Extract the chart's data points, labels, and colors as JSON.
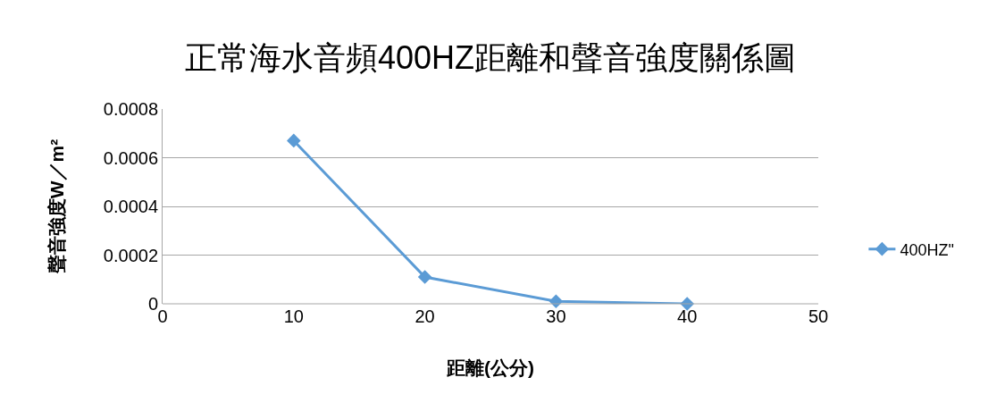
{
  "chart_data": {
    "type": "line",
    "title": "正常海水音頻400HZ距離和聲音強度關係圖",
    "xlabel": "距離(公分)",
    "ylabel": "聲音強度W／m²",
    "x": [
      10,
      20,
      30,
      40
    ],
    "series": [
      {
        "name": "400HZ\"",
        "color": "#5b9bd5",
        "values": [
          0.00067,
          0.00011,
          1e-05,
          0
        ]
      }
    ],
    "xlim": [
      0,
      50
    ],
    "xticks": [
      0,
      10,
      20,
      30,
      40,
      50
    ],
    "ylim": [
      0,
      0.0008
    ],
    "yticks": [
      0,
      0.0002,
      0.0004,
      0.0006,
      0.0008
    ],
    "grid": "y",
    "legend": "right",
    "marker": "diamond",
    "line_style": "solid"
  }
}
